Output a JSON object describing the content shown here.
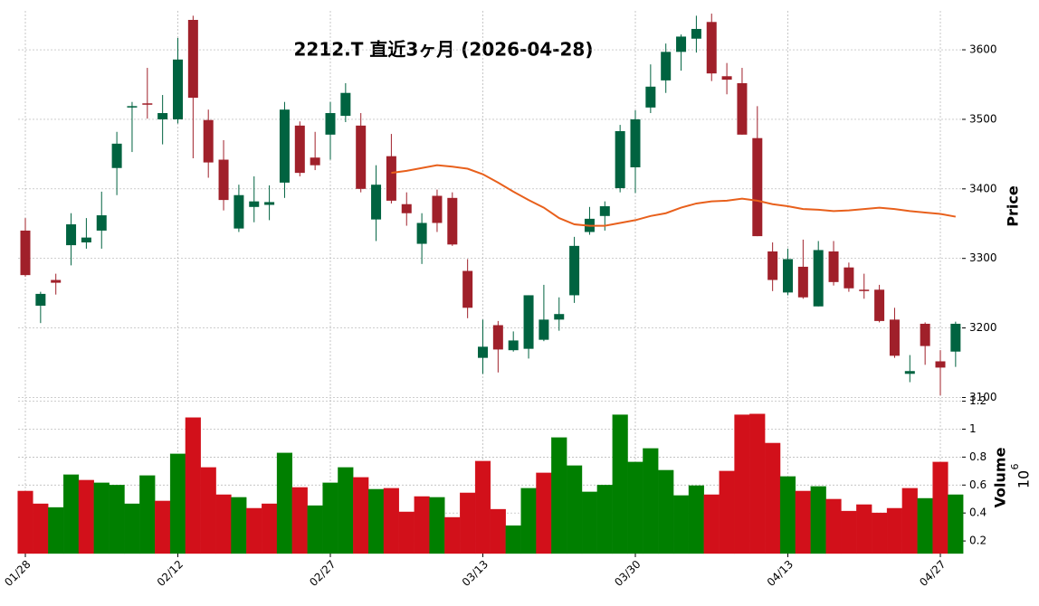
{
  "chart_data": {
    "type": "candlestick",
    "title": "2212.T 直近3ヶ月 (2026-04-28)",
    "ylabel": "Price",
    "volume_label": "Volume",
    "volume_unit_base": "10",
    "volume_unit_exp": "6",
    "categories": [
      "01/28",
      null,
      null,
      null,
      null,
      null,
      null,
      null,
      null,
      null,
      "02/12",
      null,
      null,
      null,
      null,
      null,
      null,
      null,
      null,
      null,
      "02/27",
      null,
      null,
      null,
      null,
      null,
      null,
      null,
      null,
      null,
      "03/13",
      null,
      null,
      null,
      null,
      null,
      null,
      null,
      null,
      null,
      "03/30",
      null,
      null,
      null,
      null,
      null,
      null,
      null,
      null,
      null,
      "04/13",
      null,
      null,
      null,
      null,
      null,
      null,
      null,
      null,
      null,
      "04/27",
      null
    ],
    "open": [
      3340,
      3232,
      3269,
      3319,
      3323,
      3340,
      3430,
      3517,
      3523,
      3500,
      3500,
      3643,
      3499,
      3442,
      3343,
      3374,
      3377,
      3409,
      3491,
      3445,
      3478,
      3505,
      3491,
      3356,
      3447,
      3378,
      3321,
      3390,
      3387,
      3282,
      3157,
      3204,
      3168,
      3170,
      3183,
      3212,
      3247,
      3338,
      3361,
      3401,
      3431,
      3517,
      3556,
      3597,
      3616,
      3640,
      3562,
      3552,
      3473,
      3310,
      3251,
      3288,
      3231,
      3310,
      3287,
      3255,
      3255,
      3212,
      3134,
      3206,
      3152,
      3166
    ],
    "high": [
      3358,
      3252,
      3278,
      3365,
      3358,
      3396,
      3482,
      3525,
      3574,
      3535,
      3617,
      3649,
      3514,
      3470,
      3406,
      3418,
      3405,
      3525,
      3497,
      3482,
      3525,
      3552,
      3509,
      3434,
      3479,
      3395,
      3365,
      3399,
      3395,
      3299,
      3212,
      3210,
      3195,
      3247,
      3262,
      3244,
      3331,
      3374,
      3382,
      3492,
      3513,
      3579,
      3609,
      3622,
      3649,
      3652,
      3581,
      3574,
      3519,
      3323,
      3314,
      3327,
      3325,
      3325,
      3294,
      3278,
      3262,
      3229,
      3161,
      3208,
      3168,
      3209
    ],
    "low": [
      3274,
      3207,
      3248,
      3290,
      3314,
      3314,
      3391,
      3453,
      3501,
      3464,
      3494,
      3444,
      3416,
      3369,
      3338,
      3352,
      3355,
      3387,
      3418,
      3427,
      3442,
      3496,
      3395,
      3325,
      3379,
      3347,
      3292,
      3338,
      3318,
      3214,
      3134,
      3136,
      3166,
      3156,
      3181,
      3196,
      3236,
      3334,
      3340,
      3395,
      3394,
      3509,
      3538,
      3570,
      3596,
      3555,
      3536,
      3478,
      3332,
      3253,
      3247,
      3242,
      3231,
      3261,
      3252,
      3242,
      3208,
      3157,
      3122,
      3147,
      3103,
      3144
    ],
    "close": [
      3276,
      3249,
      3265,
      3349,
      3330,
      3362,
      3465,
      3519,
      3521,
      3509,
      3586,
      3531,
      3438,
      3384,
      3391,
      3382,
      3381,
      3514,
      3423,
      3434,
      3509,
      3538,
      3400,
      3406,
      3383,
      3365,
      3351,
      3351,
      3320,
      3229,
      3173,
      3169,
      3182,
      3247,
      3212,
      3220,
      3318,
      3357,
      3375,
      3483,
      3500,
      3547,
      3597,
      3619,
      3630,
      3566,
      3557,
      3478,
      3332,
      3269,
      3299,
      3244,
      3312,
      3266,
      3257,
      3253,
      3210,
      3160,
      3138,
      3174,
      3143,
      3206
    ],
    "volume": [
      0.557,
      0.466,
      0.44,
      0.674,
      0.635,
      0.616,
      0.6,
      0.466,
      0.668,
      0.486,
      0.823,
      1.083,
      0.726,
      0.531,
      0.512,
      0.434,
      0.466,
      0.83,
      0.583,
      0.453,
      0.616,
      0.726,
      0.655,
      0.57,
      0.577,
      0.408,
      0.518,
      0.512,
      0.369,
      0.544,
      0.771,
      0.427,
      0.31,
      0.577,
      0.687,
      0.94,
      0.739,
      0.551,
      0.6,
      1.103,
      0.765,
      0.862,
      0.706,
      0.525,
      0.596,
      0.531,
      0.7,
      1.103,
      1.109,
      0.9,
      0.661,
      0.557,
      0.59,
      0.499,
      0.414,
      0.46,
      0.401,
      0.434,
      0.577,
      0.505,
      0.765,
      0.531
    ],
    "ma": {
      "color": "#e8601c",
      "values": [
        null,
        null,
        null,
        null,
        null,
        null,
        null,
        null,
        null,
        null,
        null,
        null,
        null,
        null,
        null,
        null,
        null,
        null,
        null,
        null,
        null,
        null,
        null,
        null,
        3423,
        3426,
        3430,
        3434,
        3432,
        3429,
        3421,
        3409,
        3396,
        3384,
        3373,
        3358,
        3349,
        3347,
        3347,
        3351,
        3355,
        3361,
        3365,
        3373,
        3379,
        3382,
        3383,
        3386,
        3383,
        3378,
        3375,
        3371,
        3370,
        3368,
        3369,
        3371,
        3373,
        3371,
        3368,
        3366,
        3364,
        3360
      ]
    },
    "up_color": "#006340",
    "down_color": "#a0202a",
    "volume_up_color": "#007f00",
    "volume_down_color": "#d2101a",
    "ylim": [
      3098,
      3656
    ],
    "yticks": [
      3100,
      3200,
      3300,
      3400,
      3500,
      3600
    ],
    "volume_ylim": [
      0.11,
      1.21
    ],
    "volume_ticks": [
      0.2,
      0.4,
      0.6,
      0.8,
      1.0,
      1.2
    ],
    "grid": true
  }
}
